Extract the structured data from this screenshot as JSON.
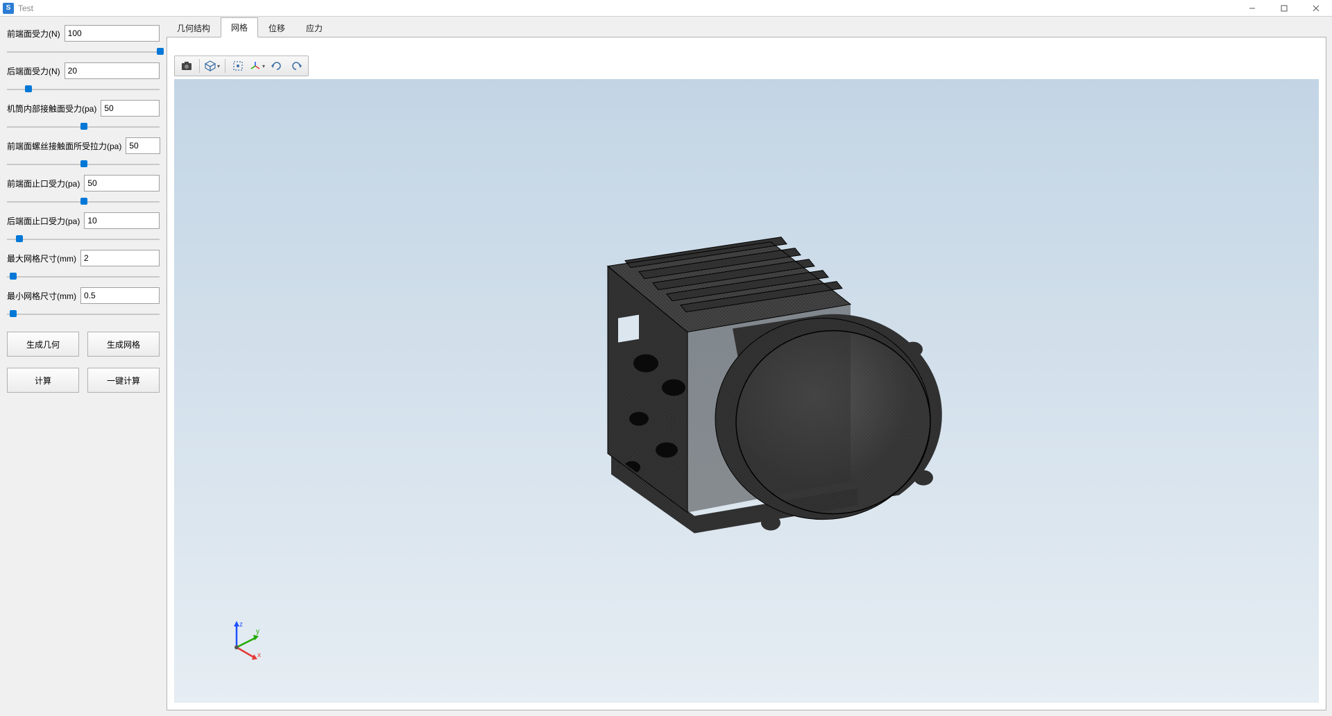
{
  "window": {
    "title": "Test",
    "icon_letter": "S"
  },
  "sidebar": {
    "params": [
      {
        "label": "前端面受力(N)",
        "value": "100",
        "slider_pct": 98
      },
      {
        "label": "后端面受力(N)",
        "value": "20",
        "slider_pct": 12
      },
      {
        "label": "机筒内部接触面受力(pa)",
        "value": "50",
        "slider_pct": 48
      },
      {
        "label": "前端面螺丝接触面所受拉力(pa)",
        "value": "50",
        "slider_pct": 48
      },
      {
        "label": "前端面止口受力(pa)",
        "value": "50",
        "slider_pct": 48
      },
      {
        "label": "后端面止口受力(pa)",
        "value": "10",
        "slider_pct": 6
      },
      {
        "label": "最大网格尺寸(mm)",
        "value": "2",
        "slider_pct": 2
      },
      {
        "label": "最小网格尺寸(mm)",
        "value": "0.5",
        "slider_pct": 2
      }
    ],
    "buttons": {
      "gen_geometry": "生成几何",
      "gen_mesh": "生成网格",
      "compute": "计算",
      "one_click": "一键计算"
    }
  },
  "tabs": [
    {
      "label": "几何结构",
      "active": false
    },
    {
      "label": "网格",
      "active": true
    },
    {
      "label": "位移",
      "active": false
    },
    {
      "label": "应力",
      "active": false
    }
  ],
  "axis": {
    "x": "x",
    "y": "y",
    "z": "z",
    "x_color": "#e53935",
    "y_color": "#1faa00",
    "z_color": "#1e50ff"
  },
  "viewer": {
    "toolbar_bg": "#eeeeee",
    "viewport_top_color": "#c3d5e5",
    "viewport_bottom_color": "#e6edf3",
    "mesh_color": "#1a1a1a"
  }
}
